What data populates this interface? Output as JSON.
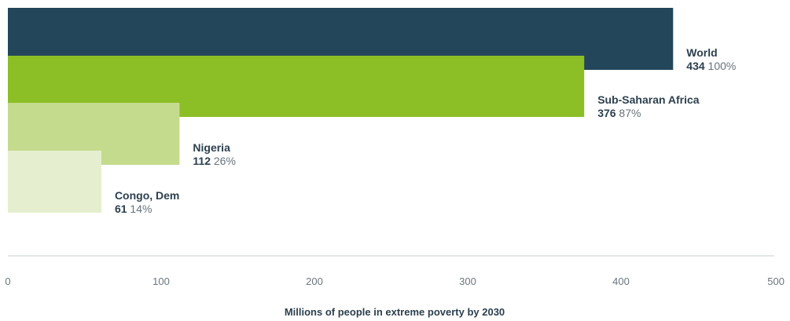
{
  "chart_data": {
    "type": "bar",
    "orientation": "horizontal",
    "categories": [
      "World",
      "Sub-Saharan Africa",
      "Nigeria",
      "Congo, Dem"
    ],
    "values": [
      434,
      376,
      112,
      61
    ],
    "value_labels": [
      "434",
      "376",
      "112",
      "61"
    ],
    "percent_labels": [
      "100%",
      "87%",
      "26%",
      "14%"
    ],
    "colors": [
      "#24465a",
      "#8cbf26",
      "#c4db8e",
      "#e5efcf"
    ],
    "xlabel": "Millions of people in extreme poverty by 2030",
    "ylabel": "",
    "xlim": [
      0,
      500
    ],
    "xticks": [
      0,
      100,
      200,
      300,
      400,
      500
    ],
    "xtick_labels": [
      "0",
      "100",
      "200",
      "300",
      "400",
      "500"
    ],
    "grid": false,
    "bars_overlap": true,
    "axis_color": "#d9dde0",
    "text_color": "#2b3f4e"
  }
}
